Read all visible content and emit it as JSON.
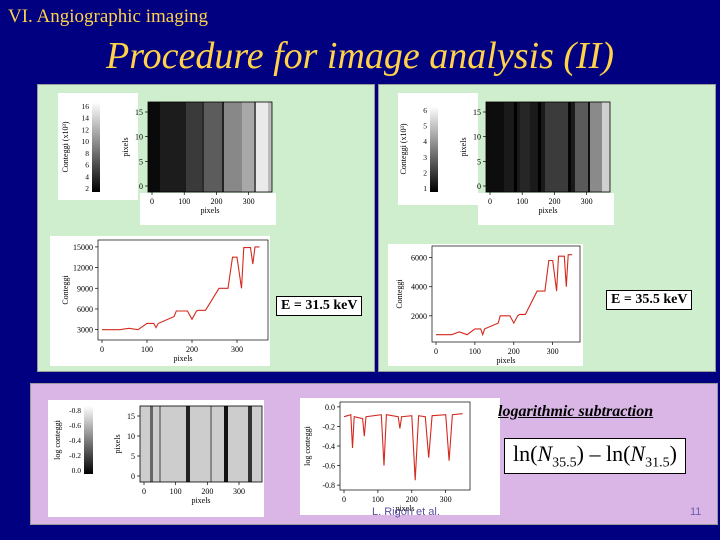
{
  "slide": {
    "section_title": "VI. Angiographic imaging",
    "title": "Procedure for image analysis (II)",
    "footer_left": "L. Rigon et al.",
    "page_number": "11",
    "colors": {
      "background": "#000080",
      "title": "#ffd24a",
      "top_panel": "#cfeecd",
      "bottom_panel": "#d9b6e6"
    }
  },
  "labels": {
    "energy_left": "E = 31.5 keV",
    "energy_right": "E = 35.5 keV",
    "log_subtraction": "logarithmic subtraction",
    "formula": {
      "ln1": "ln(",
      "N1": "N",
      "sub1": "35.5",
      "minus": ") – ln(",
      "N2": "N",
      "sub2": "31.5",
      "close": ")"
    }
  },
  "chart_data": [
    {
      "type": "heatmap",
      "id": "image-31",
      "ylabel": "pixels",
      "xlabel": "pixels",
      "xticks": [
        "0",
        "100",
        "200",
        "300"
      ],
      "yticks": [
        "0",
        "5",
        "10",
        "15"
      ],
      "colorbar_label": "Conteggi (x10³)",
      "colorbar_ticks": [
        "2",
        "4",
        "6",
        "8",
        "10",
        "12",
        "14",
        "16"
      ]
    },
    {
      "type": "heatmap",
      "id": "image-35",
      "ylabel": "pixels",
      "xlabel": "pixels",
      "xticks": [
        "0",
        "100",
        "200",
        "300"
      ],
      "yticks": [
        "0",
        "5",
        "10",
        "15"
      ],
      "colorbar_label": "Conteggi (x10³)",
      "colorbar_ticks": [
        "1",
        "2",
        "3",
        "4",
        "5",
        "6"
      ]
    },
    {
      "type": "line",
      "id": "profile-31",
      "xlabel": "pixels",
      "ylabel": "Conteggi",
      "xticks": [
        "0",
        "100",
        "200",
        "300"
      ],
      "yticks": [
        "3000",
        "6000",
        "9000",
        "12000",
        "15000"
      ],
      "xlim": [
        0,
        360
      ],
      "ylim": [
        1500,
        16000
      ],
      "x": [
        0,
        40,
        60,
        80,
        100,
        115,
        120,
        125,
        160,
        165,
        190,
        200,
        210,
        215,
        230,
        260,
        280,
        290,
        300,
        310,
        315,
        330,
        335,
        340,
        350
      ],
      "y": [
        3000,
        3000,
        3200,
        3000,
        3900,
        3900,
        3300,
        3900,
        4900,
        5700,
        5700,
        4500,
        5700,
        5800,
        5800,
        9000,
        9000,
        13500,
        13500,
        9000,
        14900,
        14900,
        12500,
        15000,
        15000
      ]
    },
    {
      "type": "line",
      "id": "profile-35",
      "xlabel": "pixels",
      "ylabel": "Conteggi",
      "xticks": [
        "0",
        "100",
        "200",
        "300"
      ],
      "yticks": [
        "2000",
        "4000",
        "6000"
      ],
      "xlim": [
        0,
        360
      ],
      "ylim": [
        200,
        6800
      ],
      "x": [
        0,
        40,
        60,
        80,
        100,
        115,
        120,
        125,
        160,
        165,
        190,
        200,
        210,
        215,
        230,
        260,
        280,
        290,
        300,
        310,
        315,
        330,
        335,
        340,
        350
      ],
      "y": [
        700,
        700,
        900,
        700,
        1100,
        1100,
        700,
        1100,
        1500,
        2000,
        2000,
        1500,
        2000,
        2100,
        2100,
        3700,
        3700,
        5800,
        5800,
        3700,
        6100,
        6100,
        4000,
        6200,
        6200
      ]
    },
    {
      "type": "heatmap",
      "id": "image-log",
      "ylabel": "pixels",
      "xlabel": "pixels",
      "xticks": [
        "0",
        "100",
        "200",
        "300"
      ],
      "yticks": [
        "0",
        "5",
        "10",
        "15"
      ],
      "colorbar_label": "log conteggi",
      "colorbar_ticks": [
        "0.0",
        "-0.2",
        "-0.4",
        "-0.6",
        "-0.8"
      ]
    },
    {
      "type": "line",
      "id": "profile-log",
      "xlabel": "pixels",
      "ylabel": "log conteggi",
      "xticks": [
        "0",
        "100",
        "200",
        "300"
      ],
      "yticks": [
        "0.0",
        "-0.2",
        "-0.4",
        "-0.6",
        "-0.8"
      ],
      "xlim": [
        0,
        360
      ],
      "ylim": [
        -0.85,
        0.05
      ],
      "x": [
        0,
        20,
        25,
        30,
        55,
        60,
        65,
        110,
        118,
        125,
        160,
        165,
        170,
        200,
        210,
        220,
        240,
        250,
        260,
        300,
        310,
        320,
        350
      ],
      "y": [
        -0.1,
        -0.08,
        -0.42,
        -0.1,
        -0.12,
        -0.3,
        -0.1,
        -0.08,
        -0.6,
        -0.08,
        -0.1,
        -0.22,
        -0.1,
        -0.09,
        -0.75,
        -0.09,
        -0.1,
        -0.52,
        -0.09,
        -0.08,
        -0.55,
        -0.08,
        -0.07
      ]
    }
  ]
}
